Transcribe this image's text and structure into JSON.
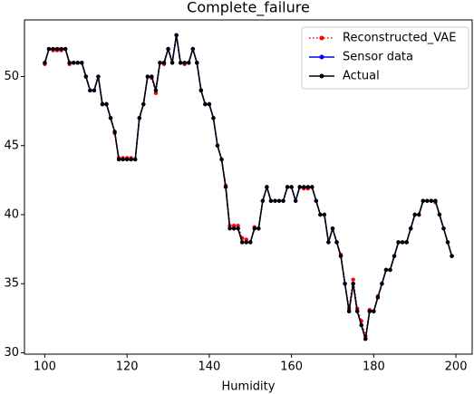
{
  "chart_data": {
    "type": "line",
    "title": "Complete_failure",
    "x_label": "Humidity",
    "x": [
      100,
      101,
      102,
      103,
      104,
      105,
      106,
      107,
      108,
      109,
      110,
      111,
      112,
      113,
      114,
      115,
      116,
      117,
      118,
      119,
      120,
      121,
      122,
      123,
      124,
      125,
      126,
      127,
      128,
      129,
      130,
      131,
      132,
      133,
      134,
      135,
      136,
      137,
      138,
      139,
      140,
      141,
      142,
      143,
      144,
      145,
      146,
      147,
      148,
      149,
      150,
      151,
      152,
      153,
      154,
      155,
      156,
      157,
      158,
      159,
      160,
      161,
      162,
      163,
      164,
      165,
      166,
      167,
      168,
      169,
      170,
      171,
      172,
      173,
      174,
      175,
      176,
      177,
      178,
      179,
      180,
      181,
      182,
      183,
      184,
      185,
      186,
      187,
      188,
      189,
      190,
      191,
      192,
      193,
      194,
      195,
      196,
      197,
      198,
      199
    ],
    "series": [
      {
        "name": "Reconstructed_VAE",
        "color": "#ff0000",
        "linestyle": "dotted",
        "values": [
          50.9,
          52,
          51.9,
          51.9,
          51.9,
          52,
          50.9,
          51,
          51,
          51,
          50,
          49,
          49,
          50,
          48,
          48,
          47,
          45.9,
          44.1,
          44.1,
          44.1,
          44.1,
          44,
          47,
          48,
          50,
          49.9,
          48.8,
          51,
          50.9,
          52,
          51,
          53,
          51,
          50.9,
          51,
          52,
          51,
          49,
          48,
          48,
          47,
          45,
          44,
          42.1,
          39.2,
          39.2,
          39.2,
          38.3,
          38.2,
          38,
          39.1,
          39,
          41,
          42,
          41,
          41,
          41,
          41,
          42,
          42,
          41,
          42,
          41.9,
          41.9,
          42,
          41,
          40,
          40,
          38,
          39,
          38,
          37.1,
          35,
          33.2,
          35.3,
          33.2,
          32.3,
          31.2,
          33.1,
          33,
          34.1,
          35,
          36,
          36,
          37,
          38,
          38,
          38,
          39,
          40,
          40,
          41,
          41,
          41,
          40.9,
          40,
          39,
          38,
          37
        ]
      },
      {
        "name": "Sensor data",
        "color": "#0000ff",
        "linestyle": "solid",
        "values": [
          51,
          52,
          52,
          52,
          52,
          52,
          51,
          51,
          51,
          51,
          50,
          49,
          49,
          50,
          48,
          48,
          47,
          46,
          44,
          44,
          44,
          44,
          44,
          47,
          48,
          50,
          50,
          49,
          51,
          51,
          52,
          51,
          53,
          51,
          51,
          51,
          52,
          51,
          49,
          48,
          48,
          47,
          45,
          44,
          42,
          39,
          39,
          39,
          38,
          38,
          38,
          39,
          39,
          41,
          42,
          41,
          41,
          41,
          41,
          42,
          42,
          41,
          42,
          42,
          42,
          42,
          41,
          40,
          40,
          38,
          39,
          38,
          37,
          35,
          33,
          35,
          33,
          32,
          31,
          33,
          33,
          34,
          35,
          36,
          36,
          37,
          38,
          38,
          38,
          39,
          40,
          40,
          41,
          41,
          41,
          41,
          40,
          39,
          38,
          37
        ]
      },
      {
        "name": "Actual",
        "color": "#000000",
        "linestyle": "solid",
        "values": [
          51,
          52,
          52,
          52,
          52,
          52,
          51,
          51,
          51,
          51,
          50,
          49,
          49,
          50,
          48,
          48,
          47,
          46,
          44,
          44,
          44,
          44,
          44,
          47,
          48,
          50,
          50,
          49,
          51,
          51,
          52,
          51,
          53,
          51,
          51,
          51,
          52,
          51,
          49,
          48,
          48,
          47,
          45,
          44,
          42,
          39,
          39,
          39,
          38,
          38,
          38,
          39,
          39,
          41,
          42,
          41,
          41,
          41,
          41,
          42,
          42,
          41,
          42,
          42,
          42,
          42,
          41,
          40,
          40,
          38,
          39,
          38,
          37,
          35,
          33,
          35,
          33,
          32,
          31,
          33,
          33,
          34,
          35,
          36,
          36,
          37,
          38,
          38,
          38,
          39,
          40,
          40,
          41,
          41,
          41,
          41,
          40,
          39,
          38,
          37
        ]
      }
    ],
    "xlim": [
      95.05,
      203.95
    ],
    "xticks": [
      100,
      120,
      140,
      160,
      180,
      200
    ],
    "ylim": [
      29.9,
      54.1
    ],
    "yticks": [
      30,
      35,
      40,
      45,
      50
    ],
    "grid": false,
    "legend": "upper right"
  }
}
